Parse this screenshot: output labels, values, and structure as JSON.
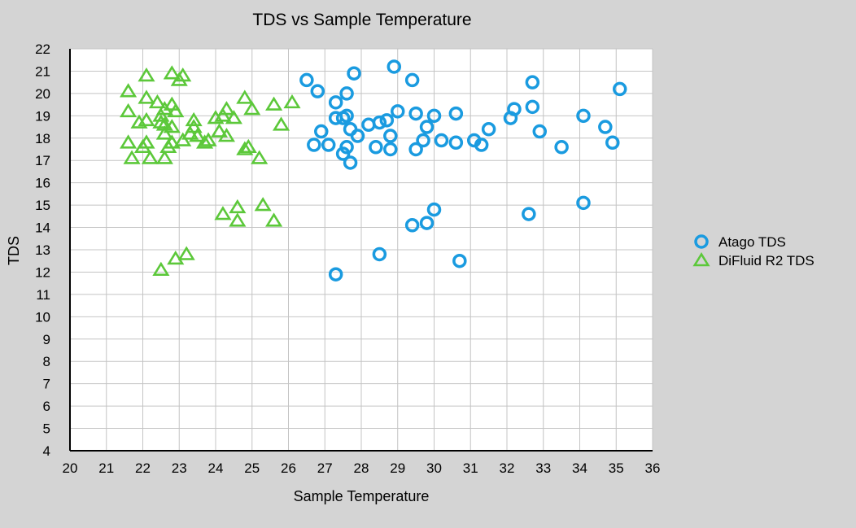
{
  "chart_data": {
    "type": "scatter",
    "title": "TDS vs Sample Temperature",
    "xlabel": "Sample Temperature",
    "ylabel": "TDS",
    "xlim": [
      20,
      36
    ],
    "ylim": [
      4,
      22
    ],
    "x_ticks": [
      20,
      21,
      22,
      23,
      24,
      25,
      26,
      27,
      28,
      29,
      30,
      31,
      32,
      33,
      34,
      35,
      36
    ],
    "y_ticks": [
      4,
      5,
      6,
      7,
      8,
      9,
      10,
      11,
      12,
      13,
      14,
      15,
      16,
      17,
      18,
      19,
      20,
      21,
      22
    ],
    "grid": true,
    "legend_position": "right",
    "series": [
      {
        "name": "Atago TDS",
        "marker": "circle",
        "color": "#1a9be0",
        "points": [
          [
            26.5,
            20.6
          ],
          [
            26.8,
            20.1
          ],
          [
            26.7,
            17.7
          ],
          [
            26.9,
            18.3
          ],
          [
            27.1,
            17.7
          ],
          [
            27.3,
            19.6
          ],
          [
            27.3,
            18.9
          ],
          [
            27.5,
            18.9
          ],
          [
            27.5,
            17.3
          ],
          [
            27.6,
            20.0
          ],
          [
            27.6,
            19.0
          ],
          [
            27.6,
            17.6
          ],
          [
            27.7,
            18.4
          ],
          [
            27.7,
            16.9
          ],
          [
            27.8,
            20.9
          ],
          [
            27.9,
            18.1
          ],
          [
            28.2,
            18.6
          ],
          [
            28.4,
            17.6
          ],
          [
            28.5,
            18.7
          ],
          [
            28.7,
            18.8
          ],
          [
            28.8,
            18.1
          ],
          [
            28.8,
            17.5
          ],
          [
            28.9,
            21.2
          ],
          [
            29.0,
            19.2
          ],
          [
            29.4,
            20.6
          ],
          [
            29.5,
            19.1
          ],
          [
            29.5,
            17.5
          ],
          [
            29.7,
            17.9
          ],
          [
            29.8,
            18.5
          ],
          [
            30.0,
            19.0
          ],
          [
            30.2,
            17.9
          ],
          [
            30.6,
            19.1
          ],
          [
            30.6,
            17.8
          ],
          [
            31.1,
            17.9
          ],
          [
            31.3,
            17.7
          ],
          [
            31.5,
            18.4
          ],
          [
            32.1,
            18.9
          ],
          [
            32.2,
            19.3
          ],
          [
            32.7,
            20.5
          ],
          [
            32.7,
            19.4
          ],
          [
            32.9,
            18.3
          ],
          [
            33.5,
            17.6
          ],
          [
            34.1,
            19.0
          ],
          [
            34.7,
            18.5
          ],
          [
            34.9,
            17.8
          ],
          [
            35.1,
            20.2
          ],
          [
            29.4,
            14.1
          ],
          [
            29.8,
            14.2
          ],
          [
            30.0,
            14.8
          ],
          [
            32.6,
            14.6
          ],
          [
            34.1,
            15.1
          ],
          [
            28.5,
            12.8
          ],
          [
            30.7,
            12.5
          ],
          [
            27.3,
            11.9
          ]
        ]
      },
      {
        "name": "DiFluid R2 TDS",
        "marker": "triangle",
        "color": "#5cc83a",
        "points": [
          [
            21.6,
            20.1
          ],
          [
            21.6,
            19.2
          ],
          [
            21.6,
            17.8
          ],
          [
            21.7,
            17.1
          ],
          [
            21.9,
            18.7
          ],
          [
            22.0,
            17.6
          ],
          [
            22.1,
            20.8
          ],
          [
            22.1,
            19.8
          ],
          [
            22.1,
            18.8
          ],
          [
            22.1,
            17.8
          ],
          [
            22.2,
            17.1
          ],
          [
            22.4,
            19.6
          ],
          [
            22.5,
            19.0
          ],
          [
            22.5,
            18.7
          ],
          [
            22.6,
            19.3
          ],
          [
            22.6,
            18.6
          ],
          [
            22.6,
            18.2
          ],
          [
            22.6,
            17.1
          ],
          [
            22.7,
            17.6
          ],
          [
            22.8,
            20.9
          ],
          [
            22.8,
            19.5
          ],
          [
            22.8,
            18.5
          ],
          [
            22.8,
            17.8
          ],
          [
            22.9,
            19.2
          ],
          [
            23.0,
            20.6
          ],
          [
            23.1,
            20.8
          ],
          [
            23.1,
            17.9
          ],
          [
            23.3,
            18.2
          ],
          [
            23.4,
            18.8
          ],
          [
            23.4,
            18.5
          ],
          [
            23.5,
            18.1
          ],
          [
            23.7,
            17.8
          ],
          [
            23.8,
            17.9
          ],
          [
            24.0,
            18.9
          ],
          [
            24.1,
            18.3
          ],
          [
            24.2,
            19.0
          ],
          [
            24.3,
            19.3
          ],
          [
            24.3,
            18.1
          ],
          [
            24.5,
            18.9
          ],
          [
            24.8,
            19.8
          ],
          [
            24.8,
            17.5
          ],
          [
            24.9,
            17.6
          ],
          [
            25.0,
            19.3
          ],
          [
            25.2,
            17.1
          ],
          [
            25.6,
            19.5
          ],
          [
            25.8,
            18.6
          ],
          [
            26.1,
            19.6
          ],
          [
            24.2,
            14.6
          ],
          [
            24.6,
            14.9
          ],
          [
            24.6,
            14.3
          ],
          [
            25.3,
            15.0
          ],
          [
            25.6,
            14.3
          ],
          [
            22.5,
            12.1
          ],
          [
            22.9,
            12.6
          ],
          [
            23.2,
            12.8
          ]
        ]
      }
    ]
  }
}
